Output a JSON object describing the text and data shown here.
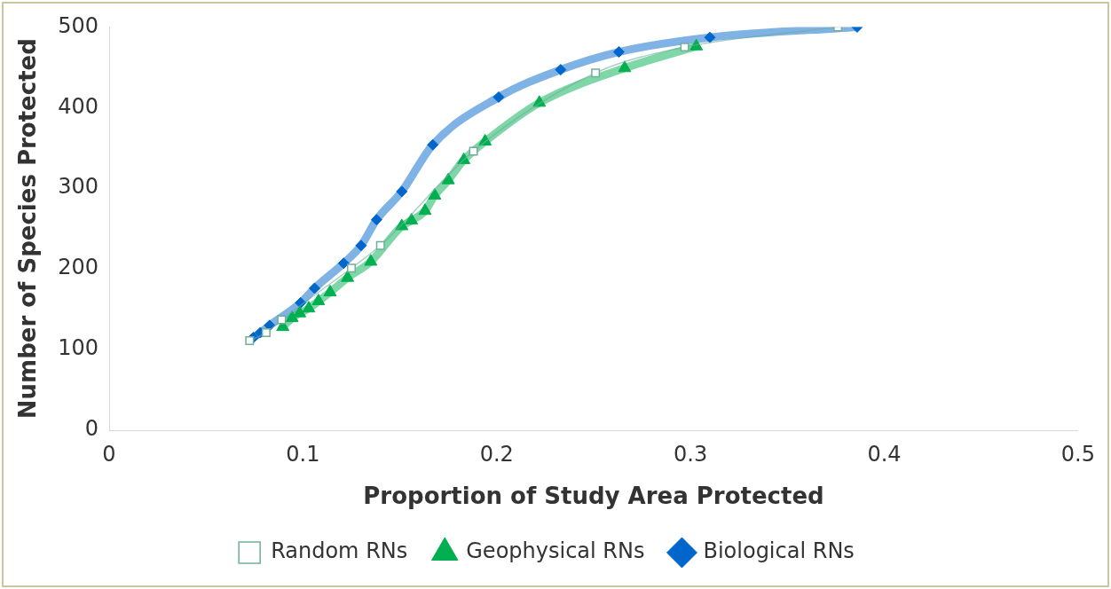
{
  "chart_data": {
    "type": "line",
    "xlabel": "Proportion of Study Area Protected",
    "ylabel": "Number of Species Protected",
    "xlim": [
      0,
      0.5
    ],
    "xticks": [
      0,
      0.1,
      0.2,
      0.3,
      0.4,
      0.5
    ],
    "ylim": [
      0,
      500
    ],
    "yticks": [
      0,
      100,
      200,
      300,
      400,
      500
    ],
    "grid": false,
    "legend": "bottom",
    "series": [
      {
        "name": "Random RNs",
        "color": "#6fae9c",
        "marker": "square",
        "x": [
          0.0725,
          0.081,
          0.089,
          0.125,
          0.14,
          0.188,
          0.251,
          0.297,
          0.376
        ],
        "values": [
          111,
          121,
          137,
          201,
          229,
          346,
          443,
          475,
          500
        ]
      },
      {
        "name": "Geophysical RNs",
        "color": "#00b050",
        "marker": "triangle",
        "x": [
          0.0896,
          0.0944,
          0.0983,
          0.103,
          0.108,
          0.114,
          0.123,
          0.135,
          0.151,
          0.156,
          0.163,
          0.168,
          0.175,
          0.183,
          0.194,
          0.222,
          0.266,
          0.303
        ],
        "values": [
          128,
          139,
          145,
          151,
          160,
          171,
          189,
          209,
          253,
          260,
          272,
          291,
          310,
          335,
          358,
          406,
          449,
          476
        ]
      },
      {
        "name": "Biological RNs",
        "color": "#0066cc",
        "marker": "diamond",
        "x": [
          0.0745,
          0.078,
          0.0828,
          0.0988,
          0.106,
          0.121,
          0.13,
          0.138,
          0.151,
          0.167,
          0.201,
          0.233,
          0.263,
          0.31,
          0.386
        ],
        "values": [
          115,
          121,
          130,
          158,
          176,
          207,
          229,
          261,
          296,
          354,
          413,
          447,
          469,
          487,
          500
        ]
      }
    ]
  }
}
